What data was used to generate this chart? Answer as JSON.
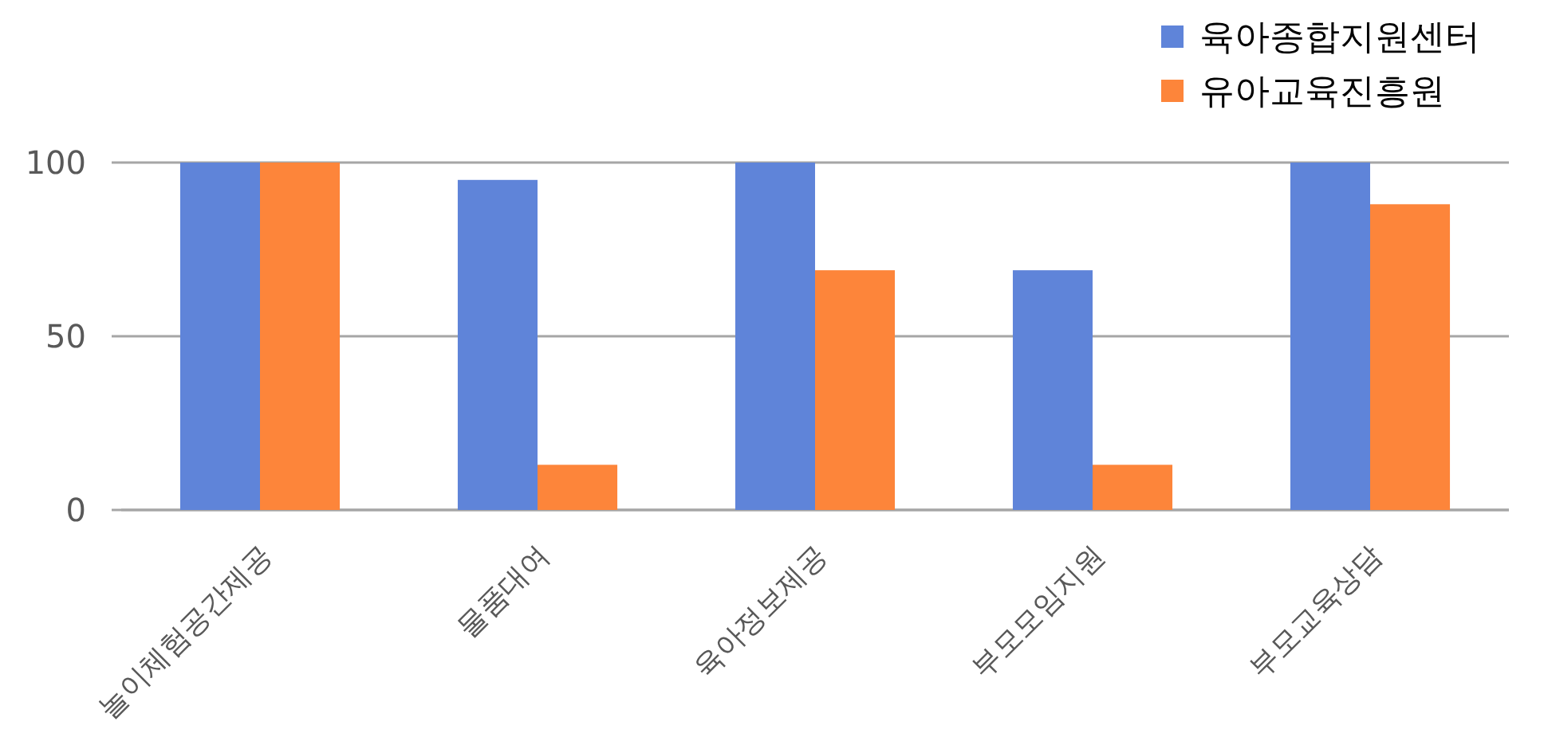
{
  "chart_data": {
    "type": "bar",
    "categories": [
      "놀이체험공간제공",
      "물품대여",
      "육아정보제공",
      "부모모임지원",
      "부모교육상담"
    ],
    "series": [
      {
        "name": "육아종합지원센터",
        "color": "#5f84d9",
        "values": [
          100,
          95,
          100,
          69,
          100
        ]
      },
      {
        "name": "유아교육진흥원",
        "color": "#fd853a",
        "values": [
          100,
          13,
          69,
          13,
          88
        ]
      }
    ],
    "ylim": [
      0,
      100
    ],
    "yticks": [
      0,
      50,
      100
    ],
    "grid": "y",
    "legend": "top right"
  }
}
